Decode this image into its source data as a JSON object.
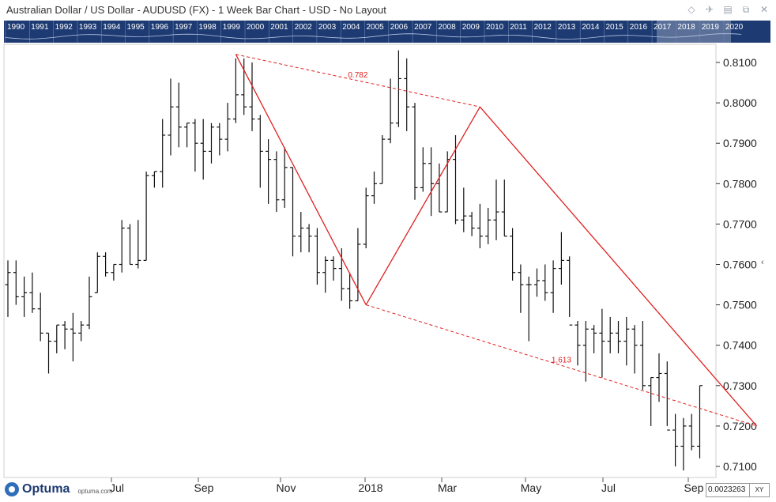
{
  "window": {
    "title": "Australian Dollar / US Dollar - AUDUSD (FX) - 1 Week Bar Chart - USD - No Layout",
    "icons": [
      "diamond-icon",
      "pin-icon",
      "print-icon",
      "restore-icon",
      "close-icon"
    ]
  },
  "timeline": {
    "years": [
      "1990",
      "1991",
      "1992",
      "1993",
      "1994",
      "1995",
      "1996",
      "1997",
      "1998",
      "1999",
      "2000",
      "2001",
      "2002",
      "2003",
      "2004",
      "2005",
      "2006",
      "2007",
      "2008",
      "2009",
      "2010",
      "2011",
      "2012",
      "2013",
      "2014",
      "2015",
      "2016",
      "2017",
      "2018",
      "2019",
      "2020"
    ],
    "background": "#1d3a72"
  },
  "footer": {
    "brand": "Optuma",
    "url": "optuma.com",
    "price_readout": "0.0023263",
    "mode": "XY"
  },
  "chart_data": {
    "type": "bar",
    "subtype": "ohlc",
    "x_tick_labels": [
      "Jul",
      "Sep",
      "Nov",
      "2018",
      "Mar",
      "May",
      "Jul",
      "Sep"
    ],
    "y_ticks": [
      "0.8100",
      "0.8000",
      "0.7900",
      "0.7800",
      "0.7700",
      "0.7600",
      "0.7500",
      "0.7400",
      "0.7300",
      "0.7200",
      "0.7100"
    ],
    "ylim": [
      0.7075,
      0.8175
    ],
    "y_axis_side": "right",
    "grid": false,
    "colors": {
      "bars": "#111111",
      "pattern": "#e02020"
    },
    "ohlc_weekly": [
      [
        0.755,
        0.761,
        0.747,
        0.758
      ],
      [
        0.758,
        0.761,
        0.75,
        0.752
      ],
      [
        0.752,
        0.757,
        0.747,
        0.753
      ],
      [
        0.753,
        0.758,
        0.748,
        0.749
      ],
      [
        0.749,
        0.753,
        0.741,
        0.743
      ],
      [
        0.743,
        0.743,
        0.733,
        0.741
      ],
      [
        0.741,
        0.745,
        0.738,
        0.745
      ],
      [
        0.745,
        0.746,
        0.739,
        0.744
      ],
      [
        0.744,
        0.748,
        0.736,
        0.743
      ],
      [
        0.743,
        0.746,
        0.741,
        0.745
      ],
      [
        0.745,
        0.757,
        0.744,
        0.752
      ],
      [
        0.753,
        0.763,
        0.753,
        0.762
      ],
      [
        0.762,
        0.763,
        0.757,
        0.758
      ],
      [
        0.758,
        0.76,
        0.756,
        0.76
      ],
      [
        0.76,
        0.771,
        0.758,
        0.769
      ],
      [
        0.769,
        0.77,
        0.76,
        0.76
      ],
      [
        0.76,
        0.771,
        0.759,
        0.761
      ],
      [
        0.761,
        0.783,
        0.761,
        0.782
      ],
      [
        0.782,
        0.783,
        0.779,
        0.783
      ],
      [
        0.783,
        0.796,
        0.779,
        0.792
      ],
      [
        0.792,
        0.806,
        0.787,
        0.799
      ],
      [
        0.799,
        0.805,
        0.789,
        0.794
      ],
      [
        0.794,
        0.795,
        0.789,
        0.795
      ],
      [
        0.795,
        0.796,
        0.783,
        0.79
      ],
      [
        0.79,
        0.796,
        0.781,
        0.788
      ],
      [
        0.788,
        0.795,
        0.785,
        0.794
      ],
      [
        0.794,
        0.795,
        0.787,
        0.791
      ],
      [
        0.791,
        0.8,
        0.788,
        0.796
      ],
      [
        0.796,
        0.811,
        0.795,
        0.802
      ],
      [
        0.802,
        0.811,
        0.797,
        0.799
      ],
      [
        0.799,
        0.81,
        0.793,
        0.796
      ],
      [
        0.796,
        0.797,
        0.779,
        0.788
      ],
      [
        0.788,
        0.791,
        0.775,
        0.786
      ],
      [
        0.786,
        0.788,
        0.773,
        0.776
      ],
      [
        0.776,
        0.789,
        0.774,
        0.784
      ],
      [
        0.784,
        0.784,
        0.762,
        0.767
      ],
      [
        0.767,
        0.773,
        0.763,
        0.769
      ],
      [
        0.769,
        0.77,
        0.763,
        0.767
      ],
      [
        0.767,
        0.769,
        0.755,
        0.758
      ],
      [
        0.758,
        0.762,
        0.753,
        0.761
      ],
      [
        0.761,
        0.762,
        0.756,
        0.759
      ],
      [
        0.759,
        0.764,
        0.751,
        0.754
      ],
      [
        0.754,
        0.758,
        0.749,
        0.751
      ],
      [
        0.751,
        0.769,
        0.751,
        0.765
      ],
      [
        0.765,
        0.779,
        0.764,
        0.777
      ],
      [
        0.777,
        0.783,
        0.775,
        0.78
      ],
      [
        0.78,
        0.792,
        0.78,
        0.791
      ],
      [
        0.791,
        0.806,
        0.79,
        0.795
      ],
      [
        0.795,
        0.813,
        0.794,
        0.806
      ],
      [
        0.806,
        0.811,
        0.793,
        0.799
      ],
      [
        0.799,
        0.8,
        0.776,
        0.779
      ],
      [
        0.779,
        0.789,
        0.778,
        0.785
      ],
      [
        0.785,
        0.789,
        0.772,
        0.78
      ],
      [
        0.78,
        0.785,
        0.773,
        0.773
      ],
      [
        0.773,
        0.788,
        0.773,
        0.786
      ],
      [
        0.786,
        0.792,
        0.77,
        0.771
      ],
      [
        0.771,
        0.779,
        0.768,
        0.772
      ],
      [
        0.772,
        0.773,
        0.767,
        0.769
      ],
      [
        0.769,
        0.775,
        0.764,
        0.767
      ],
      [
        0.767,
        0.774,
        0.765,
        0.771
      ],
      [
        0.771,
        0.781,
        0.766,
        0.773
      ],
      [
        0.773,
        0.781,
        0.767,
        0.767
      ],
      [
        0.767,
        0.769,
        0.756,
        0.758
      ],
      [
        0.758,
        0.76,
        0.748,
        0.755
      ],
      [
        0.755,
        0.757,
        0.741,
        0.755
      ],
      [
        0.755,
        0.759,
        0.752,
        0.756
      ],
      [
        0.756,
        0.76,
        0.751,
        0.753
      ],
      [
        0.753,
        0.761,
        0.748,
        0.759
      ],
      [
        0.759,
        0.768,
        0.755,
        0.761
      ],
      [
        0.761,
        0.762,
        0.747,
        0.745
      ],
      [
        0.745,
        0.746,
        0.735,
        0.74
      ],
      [
        0.74,
        0.746,
        0.731,
        0.744
      ],
      [
        0.744,
        0.745,
        0.738,
        0.743
      ],
      [
        0.743,
        0.749,
        0.732,
        0.741
      ],
      [
        0.741,
        0.747,
        0.738,
        0.743
      ],
      [
        0.743,
        0.746,
        0.738,
        0.741
      ],
      [
        0.741,
        0.747,
        0.735,
        0.744
      ],
      [
        0.744,
        0.745,
        0.733,
        0.74
      ],
      [
        0.74,
        0.746,
        0.729,
        0.73
      ],
      [
        0.73,
        0.732,
        0.72,
        0.732
      ],
      [
        0.732,
        0.738,
        0.726,
        0.733
      ],
      [
        0.733,
        0.736,
        0.72,
        0.719
      ],
      [
        0.719,
        0.723,
        0.71,
        0.715
      ],
      [
        0.715,
        0.722,
        0.709,
        0.72
      ],
      [
        0.72,
        0.723,
        0.714,
        0.715
      ],
      [
        0.715,
        0.73,
        0.712,
        0.73
      ]
    ],
    "pattern": {
      "points": [
        {
          "week": 28,
          "y": 0.812
        },
        {
          "week": 44,
          "y": 0.75
        },
        {
          "week": 58,
          "y": 0.799
        },
        {
          "week": 92,
          "y": 0.72
        }
      ],
      "ratios": [
        "0.782",
        "1.613"
      ]
    }
  }
}
